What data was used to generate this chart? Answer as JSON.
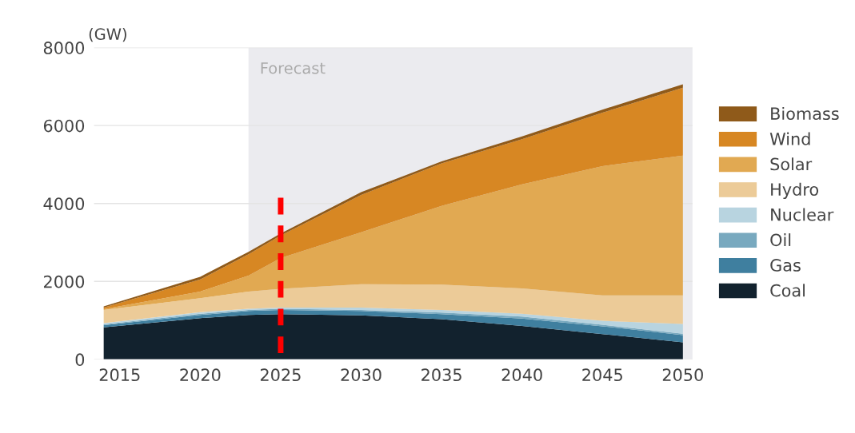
{
  "chart_data": {
    "type": "area",
    "stacked": true,
    "ylabel": "(GW)",
    "x": [
      2014,
      2020,
      2023,
      2025,
      2030,
      2035,
      2040,
      2045,
      2050
    ],
    "series": [
      {
        "name": "Coal",
        "color": "#12222e",
        "values": [
          820,
          1060,
          1140,
          1160,
          1130,
          1030,
          860,
          650,
          440
        ]
      },
      {
        "name": "Gas",
        "color": "#3f7f9f",
        "values": [
          60,
          80,
          100,
          110,
          110,
          130,
          190,
          200,
          180
        ]
      },
      {
        "name": "Oil",
        "color": "#78a9bf",
        "values": [
          20,
          30,
          30,
          30,
          30,
          40,
          50,
          40,
          40
        ]
      },
      {
        "name": "Nuclear",
        "color": "#b8d4e0",
        "values": [
          30,
          40,
          30,
          30,
          60,
          70,
          70,
          100,
          250
        ]
      },
      {
        "name": "Hydro",
        "color": "#eccb98",
        "values": [
          340,
          360,
          440,
          480,
          600,
          650,
          650,
          650,
          730
        ]
      },
      {
        "name": "Solar",
        "color": "#e1a952",
        "values": [
          20,
          170,
          410,
          790,
          1330,
          2020,
          2670,
          3320,
          3590
        ]
      },
      {
        "name": "Wind",
        "color": "#d78723",
        "values": [
          40,
          310,
          550,
          580,
          960,
          1090,
          1160,
          1370,
          1740
        ]
      },
      {
        "name": "Biomass",
        "color": "#8f5a1a",
        "values": [
          30,
          70,
          60,
          50,
          70,
          50,
          70,
          80,
          90
        ]
      }
    ],
    "xlim": [
      2013.4,
      2050.6
    ],
    "xticks": [
      2015,
      2020,
      2025,
      2030,
      2035,
      2040,
      2045,
      2050
    ],
    "ylim": [
      0,
      8000
    ],
    "yticks": [
      0,
      2000,
      4000,
      6000,
      8000
    ],
    "bands": [
      {
        "axis": "x",
        "from": 2023,
        "to": 2050.6,
        "label": "Forecast",
        "color": "#ebebef"
      }
    ],
    "ref_lines": [
      {
        "axis": "x",
        "value": 2025,
        "color": "#ff0000",
        "line_style": "dashed"
      }
    ],
    "grid": "y",
    "legend": "right"
  }
}
